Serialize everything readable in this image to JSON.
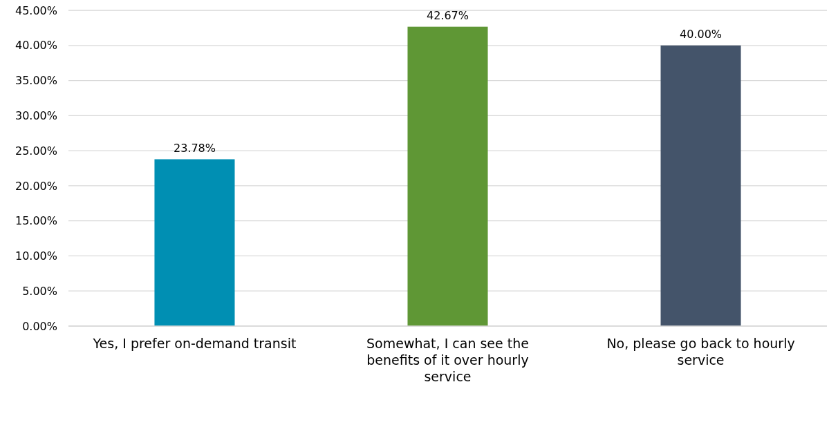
{
  "chart_data": {
    "type": "bar",
    "categories": [
      "Yes, I prefer on-demand transit",
      "Somewhat, I can see the benefits of it over hourly service",
      "No, please go back to hourly service"
    ],
    "values": [
      23.78,
      42.67,
      40.0
    ],
    "colors": [
      "#008fb3",
      "#5f9735",
      "#44546a"
    ],
    "value_labels": [
      "23.78%",
      "42.67%",
      "40.00%"
    ],
    "ylim": [
      0,
      45
    ],
    "yticks": [
      {
        "value": 0,
        "label": "0.00%"
      },
      {
        "value": 5,
        "label": "5.00%"
      },
      {
        "value": 10,
        "label": "10.00%"
      },
      {
        "value": 15,
        "label": "15.00%"
      },
      {
        "value": 20,
        "label": "20.00%"
      },
      {
        "value": 25,
        "label": "25.00%"
      },
      {
        "value": 30,
        "label": "30.00%"
      },
      {
        "value": 35,
        "label": "35.00%"
      },
      {
        "value": 40,
        "label": "40.00%"
      },
      {
        "value": 45,
        "label": "45.00%"
      }
    ],
    "grid": "y"
  }
}
